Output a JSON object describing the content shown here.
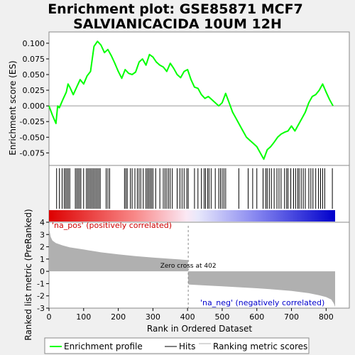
{
  "chart_data": {
    "title_line1": "Enrichment plot: GSE85871 MCF7",
    "title_line2": "SALVIANICACIDA 10UM 12H",
    "xlabel": "Rank in Ordered Dataset",
    "ylabel_top": "Enrichment score (ES)",
    "ylabel_bottom": "Ranked list metric (PreRanked)",
    "xlim": [
      0,
      830
    ],
    "x_ticks": [
      0,
      100,
      200,
      300,
      400,
      500,
      600,
      700,
      800
    ],
    "es": {
      "type": "line",
      "ylim": [
        -0.095,
        0.118
      ],
      "y_ticks": [
        -0.075,
        -0.05,
        -0.025,
        0.0,
        0.025,
        0.05,
        0.075,
        0.1
      ],
      "y_tick_labels": [
        "-0.075",
        "-0.050",
        "-0.025",
        "0.000",
        "0.025",
        "0.050",
        "0.075",
        "0.100"
      ],
      "x": [
        0,
        10,
        20,
        25,
        30,
        40,
        50,
        55,
        60,
        70,
        80,
        90,
        100,
        110,
        120,
        130,
        140,
        150,
        160,
        170,
        180,
        190,
        200,
        210,
        220,
        230,
        240,
        250,
        260,
        270,
        280,
        290,
        300,
        310,
        320,
        330,
        340,
        350,
        360,
        370,
        380,
        390,
        400,
        410,
        420,
        430,
        440,
        450,
        460,
        470,
        480,
        490,
        500,
        510,
        520,
        530,
        540,
        550,
        560,
        570,
        580,
        590,
        600,
        610,
        620,
        630,
        640,
        650,
        660,
        670,
        680,
        690,
        700,
        710,
        720,
        730,
        740,
        750,
        760,
        770,
        780,
        790,
        800,
        810,
        820
      ],
      "y": [
        0.0,
        -0.015,
        -0.028,
        0.0,
        -0.003,
        0.01,
        0.022,
        0.035,
        0.03,
        0.018,
        0.03,
        0.042,
        0.035,
        0.048,
        0.055,
        0.095,
        0.103,
        0.097,
        0.085,
        0.09,
        0.08,
        0.068,
        0.055,
        0.044,
        0.058,
        0.052,
        0.05,
        0.054,
        0.07,
        0.075,
        0.065,
        0.082,
        0.078,
        0.07,
        0.065,
        0.062,
        0.055,
        0.068,
        0.06,
        0.05,
        0.045,
        0.055,
        0.058,
        0.042,
        0.03,
        0.028,
        0.018,
        0.012,
        0.015,
        0.01,
        0.005,
        0.0,
        0.005,
        0.02,
        0.005,
        -0.01,
        -0.02,
        -0.03,
        -0.04,
        -0.05,
        -0.055,
        -0.06,
        -0.065,
        -0.075,
        -0.085,
        -0.07,
        -0.065,
        -0.058,
        -0.05,
        -0.045,
        -0.042,
        -0.04,
        -0.032,
        -0.04,
        -0.03,
        -0.02,
        -0.01,
        0.005,
        0.015,
        0.018,
        0.025,
        0.035,
        0.022,
        0.01,
        0.0
      ],
      "color": "#00ff00"
    },
    "hits": [
      22,
      30,
      38,
      44,
      48,
      52,
      56,
      60,
      76,
      80,
      84,
      88,
      92,
      100,
      108,
      112,
      116,
      120,
      124,
      128,
      132,
      136,
      140,
      144,
      148,
      165,
      170,
      175,
      218,
      222,
      226,
      235,
      240,
      248,
      255,
      260,
      265,
      272,
      280,
      284,
      288,
      292,
      296,
      300,
      308,
      320,
      330,
      335,
      340,
      345,
      350,
      356,
      370,
      378,
      384,
      390,
      398,
      402,
      420,
      430,
      440,
      448,
      452,
      458,
      462,
      468,
      480,
      490,
      495,
      500,
      505,
      510,
      548,
      575,
      588,
      600,
      618,
      626,
      630,
      636,
      642,
      650,
      658,
      664,
      670,
      680,
      686,
      690,
      698,
      706,
      712,
      718,
      722,
      728,
      734,
      740,
      750,
      756,
      762,
      770,
      778,
      784,
      790,
      796,
      818
    ],
    "hits_color": "#000000",
    "ranked_metric": {
      "ylim": [
        -3,
        4
      ],
      "y_ticks": [
        -3,
        -2,
        -1,
        0,
        1,
        2,
        3,
        4
      ],
      "x": [
        0,
        5,
        10,
        20,
        40,
        60,
        100,
        150,
        200,
        250,
        300,
        350,
        401,
        402,
        405,
        450,
        500,
        550,
        600,
        650,
        700,
        750,
        780,
        800,
        815,
        822,
        826
      ],
      "y": [
        3.5,
        2.8,
        2.5,
        2.3,
        2.1,
        1.95,
        1.78,
        1.55,
        1.38,
        1.24,
        1.12,
        1.02,
        0.92,
        -1.05,
        -1.08,
        -1.15,
        -1.22,
        -1.3,
        -1.38,
        -1.48,
        -1.6,
        -1.78,
        -1.95,
        -2.1,
        -2.3,
        -2.6,
        -2.9
      ],
      "fill_color": "#b0b0b0",
      "zero_cross": 402,
      "zero_cross_label": "Zero cross at 402",
      "pos_label": "'na_pos' (positively correlated)",
      "neg_label": "'na_neg' (negatively correlated)",
      "pos_color": "#cc0000",
      "neg_color": "#0000cc"
    },
    "legend": {
      "placement": "bottom",
      "items": [
        {
          "label": "Enrichment profile",
          "color": "#00ff00",
          "style": "line"
        },
        {
          "label": "Hits",
          "color": "#000000",
          "style": "line"
        },
        {
          "label": "Ranking metric scores",
          "color": "#b0b0b0",
          "style": "line"
        }
      ]
    }
  }
}
